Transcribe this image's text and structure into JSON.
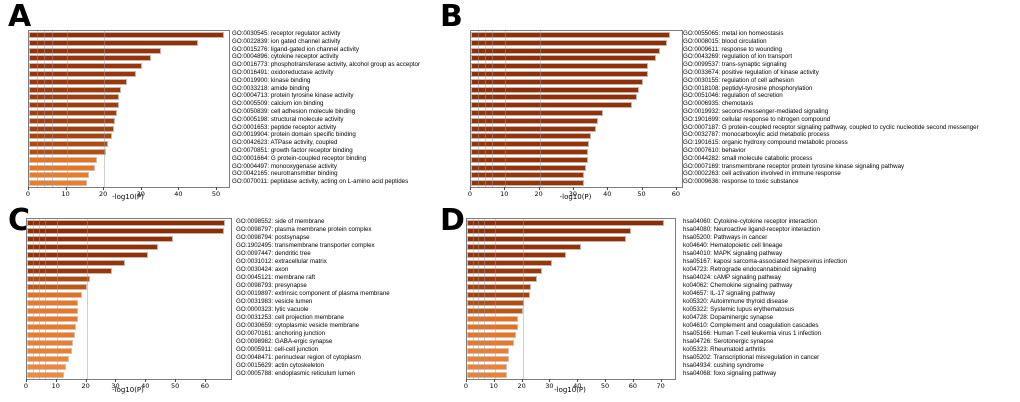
{
  "figure_bg": "#ffffff",
  "color_scale": {
    "description": "bar fill mapped from -log10(P): orange (low) to dark maroon (high)",
    "stops": [
      {
        "value": 12,
        "color": "#F28A3E"
      },
      {
        "value": 16,
        "color": "#EE7A26"
      },
      {
        "value": 19,
        "color": "#E46E1C"
      },
      {
        "value": 20.3,
        "color": "#B4500F"
      },
      {
        "value": 22.5,
        "color": "#A53F0C"
      },
      {
        "value": 26,
        "color": "#9C3709"
      },
      {
        "value": 38,
        "color": "#943107"
      },
      {
        "value": 75,
        "color": "#8C2B04"
      }
    ],
    "grid_color": "#bdbdbd",
    "bar_edge": "#c9c9c9",
    "plot_border": "#7d7d7d"
  },
  "chart_data": [
    {
      "type": "bar",
      "panel_letter": "A",
      "orientation": "horizontal",
      "xlabel": "-log10(P)",
      "xticks": [
        0,
        10,
        20,
        30,
        40,
        50
      ],
      "xlim": [
        0,
        53.2
      ],
      "gridlines": [
        2,
        4,
        6,
        10,
        20
      ],
      "categories": [
        "GO:0030545: receptor regulator activity",
        "GO:0022839: ion gated channel activity",
        "GO:0015276: ligand-gated ion channel activity",
        "GO:0004896: cytokine receptor activity",
        "GO:0016773: phosphotransferase activity, alcohol group as acceptor",
        "GO:0016491: oxidoreductase activity",
        "GO:0019900: kinase binding",
        "GO:0033218: amide binding",
        "GO:0004713: protein tyrosine kinase activity",
        "GO:0005509: calcium ion binding",
        "GO:0050839: cell adhesion molecule binding",
        "GO:0005198: structural molecule activity",
        "GO:0001653: peptide receptor activity",
        "GO:0019904: protein domain specific binding",
        "GO:0042623: ATPase activity, coupled",
        "GO:0070851: growth factor receptor binding",
        "GO:0001664: G protein-coupled receptor binding",
        "GO:0004497: monooxygenase activity",
        "GO:0042165: neurotransmitter binding",
        "GO:0070011: peptidase activity, acting on L-amino acid peptides"
      ],
      "values": [
        52,
        45,
        35,
        32.5,
        30,
        28.5,
        26,
        24.5,
        24,
        24,
        23.5,
        23,
        22.5,
        22,
        21,
        20.5,
        18,
        17.5,
        16,
        15.5
      ]
    },
    {
      "type": "bar",
      "panel_letter": "B",
      "orientation": "horizontal",
      "xlabel": "-log10(P)",
      "xticks": [
        0,
        10,
        20,
        30,
        40,
        50,
        60
      ],
      "xlim": [
        0,
        61.5
      ],
      "gridlines": [
        2,
        4,
        6,
        10,
        20
      ],
      "categories": [
        "GO:0055065: metal ion homeostasis",
        "GO:0008015: blood circulation",
        "GO:0009611: response to wounding",
        "GO:0043269: regulation of ion transport",
        "GO:0099537: trans-synaptic signaling",
        "GO:0033674: positive regulation of kinase activity",
        "GO:0030155: regulation of cell adhesion",
        "GO:0018108: peptidyl-tyrosine phosphorylation",
        "GO:0051046: regulation of secretion",
        "GO:0006935: chemotaxis",
        "GO:0019932: second-messenger-mediated signaling",
        "GO:1901699: cellular response to nitrogen compound",
        "GO:0007187: G protein-coupled receptor signaling pathway, coupled to cyclic nucleotide second messenger",
        "GO:0032787: monocarboxylic acid metabolic process",
        "GO:1901615: organic hydroxy compound metabolic process",
        "GO:0007610: behavior",
        "GO:0044282: small molecule catabolic process",
        "GO:0007169: transmembrane receptor protein tyrosine kinase signaling pathway",
        "GO:0002263: cell activation involved in immune response",
        "GO:0009636: response to toxic substance"
      ],
      "values": [
        58,
        57,
        55,
        54,
        51.5,
        51.5,
        50,
        49,
        48.5,
        47,
        38.5,
        37,
        36.5,
        35,
        34.5,
        34,
        34,
        33.5,
        33,
        33
      ]
    },
    {
      "type": "bar",
      "panel_letter": "C",
      "orientation": "horizontal",
      "xlabel": "-log10(P)",
      "xticks": [
        0,
        10,
        20,
        30,
        40,
        50,
        60
      ],
      "xlim": [
        0,
        68.4
      ],
      "gridlines": [
        2,
        4,
        6,
        10,
        20
      ],
      "categories": [
        "GO:0098552: side of membrane",
        "GO:0098797: plasma membrane protein complex",
        "GO:0098794: postsynapse",
        "GO:1902495: transmembrane transporter complex",
        "GO:0097447: dendritic tree",
        "GO:0031012: extracellular matrix",
        "GO:0030424: axon",
        "GO:0045121: membrane raft",
        "GO:0098793: presynapse",
        "GO:0019897: extrinsic component of plasma membrane",
        "GO:0031983: vesicle lumen",
        "GO:0000323: lytic vacuole",
        "GO:0031253: cell projection membrane",
        "GO:0030659: cytoplasmic vesicle membrane",
        "GO:0070161: anchoring junction",
        "GO:0098982: GABA-ergic synapse",
        "GO:0005911: cell-cell junction",
        "GO:0048471: perinuclear region of cytoplasm",
        "GO:0015629: actin cytoskeleton",
        "GO:0005788: endoplasmic reticulum lumen"
      ],
      "values": [
        66.5,
        66,
        49,
        44,
        40.5,
        33,
        28.5,
        21,
        20,
        18.5,
        17,
        17,
        17,
        16.5,
        16,
        15.5,
        15,
        14,
        13,
        12.5
      ]
    },
    {
      "type": "bar",
      "panel_letter": "D",
      "orientation": "horizontal",
      "xlabel": "-log10(P)",
      "xticks": [
        0,
        10,
        20,
        30,
        40,
        50,
        60,
        70
      ],
      "xlim": [
        0,
        74.8
      ],
      "gridlines": [
        2,
        4,
        6,
        10,
        20
      ],
      "categories": [
        "hsa04060: Cytokine-cytokine receptor interaction",
        "hsa04080: Neuroactive ligand-receptor interaction",
        "hsa05200: Pathways in cancer",
        "ko04640: Hematopoietic cell lineage",
        "hsa04010: MAPK signaling pathway",
        "hsa05167: kaposi sarcoma-associated herpesvirus infection",
        "ko04723: Retrograde endocannabinoid signaling",
        "hsa04024: cAMP signaling pathway",
        "ko04062: Chemokine signaling pathway",
        "ko04657: IL-17 signaling pathway",
        "ko05320: Autoimmune thyroid disease",
        "ko05322: Systemic lupus erythematosus",
        "ko04728: Dopaminergic synapse",
        "ko04610: Complement and coagulation cascades",
        "hsa05166: Human T-cell leukemia virus 1 infection",
        "hsa04726: Serotonergic synapse",
        "ko05323: Rheumatoid arthritis",
        "hsa05202: Transcriptional misregulation in cancer",
        "hsa04934: cushing syndrome",
        "hsa04068: foxo signaling pathway"
      ],
      "values": [
        71,
        59,
        57,
        41,
        35.5,
        30.5,
        27,
        25,
        23,
        22.5,
        20.5,
        20,
        18.5,
        18.5,
        17.5,
        17,
        15,
        15,
        14.5,
        14.5
      ]
    }
  ]
}
